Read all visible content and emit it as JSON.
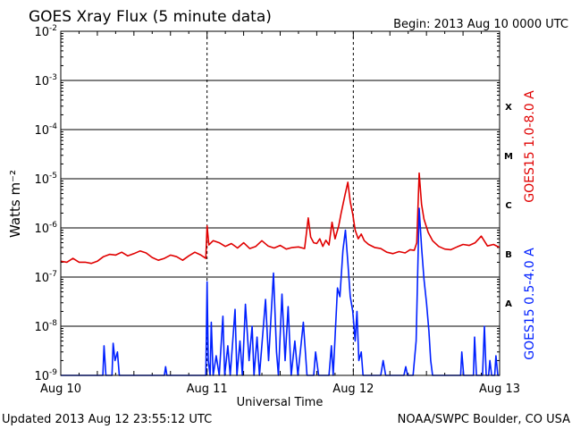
{
  "header": {
    "title": "GOES Xray Flux (5 minute data)",
    "begin": "Begin:  2013 Aug 10 0000 UTC"
  },
  "footer": {
    "updated": "Updated 2013 Aug 12 23:55:12 UTC",
    "credit": "NOAA/SWPC Boulder, CO USA"
  },
  "chart_data": {
    "type": "line",
    "title": "GOES Xray Flux (5 minute data)",
    "xlabel": "Universal Time",
    "ylabel": "Watts m⁻²",
    "y_scale": "log",
    "ylim": [
      1e-09,
      0.01
    ],
    "xlim": [
      0,
      72
    ],
    "x_unit": "hours since 2013 Aug 10 0000 UTC",
    "x_ticks": [
      {
        "x": 0,
        "label": "Aug 10"
      },
      {
        "x": 24,
        "label": "Aug 11"
      },
      {
        "x": 48,
        "label": "Aug 12"
      },
      {
        "x": 72,
        "label": "Aug 13"
      }
    ],
    "y_ticks": [
      {
        "exp": -9,
        "base": "10",
        "sup": "-9"
      },
      {
        "exp": -8,
        "base": "10",
        "sup": "-8"
      },
      {
        "exp": -7,
        "base": "10",
        "sup": "-7"
      },
      {
        "exp": -6,
        "base": "10",
        "sup": "-6"
      },
      {
        "exp": -5,
        "base": "10",
        "sup": "-5"
      },
      {
        "exp": -4,
        "base": "10",
        "sup": "-4"
      },
      {
        "exp": -3,
        "base": "10",
        "sup": "-3"
      },
      {
        "exp": -2,
        "base": "10",
        "sup": "-2"
      }
    ],
    "flare_classes": [
      {
        "label": "A",
        "y": 3e-08
      },
      {
        "label": "B",
        "y": 3e-07
      },
      {
        "label": "C",
        "y": 3e-06
      },
      {
        "label": "M",
        "y": 3e-05
      },
      {
        "label": "X",
        "y": 0.0003
      }
    ],
    "grid": true,
    "series": [
      {
        "name": "GOES15 1.0-8.0 A",
        "color": "#e00000",
        "points": [
          [
            0,
            2.1e-07
          ],
          [
            1,
            2e-07
          ],
          [
            2,
            2.4e-07
          ],
          [
            3,
            2e-07
          ],
          [
            4,
            2e-07
          ],
          [
            5,
            1.9e-07
          ],
          [
            6,
            2.1e-07
          ],
          [
            7,
            2.6e-07
          ],
          [
            8,
            2.9e-07
          ],
          [
            9,
            2.8e-07
          ],
          [
            10,
            3.2e-07
          ],
          [
            11,
            2.7e-07
          ],
          [
            12,
            3e-07
          ],
          [
            13,
            3.4e-07
          ],
          [
            14,
            3.1e-07
          ],
          [
            15,
            2.5e-07
          ],
          [
            16,
            2.2e-07
          ],
          [
            17,
            2.4e-07
          ],
          [
            18,
            2.8e-07
          ],
          [
            19,
            2.6e-07
          ],
          [
            20,
            2.2e-07
          ],
          [
            21,
            2.7e-07
          ],
          [
            22,
            3.2e-07
          ],
          [
            23,
            2.8e-07
          ],
          [
            23.8,
            2.4e-07
          ],
          [
            24,
            1.1e-06
          ],
          [
            24.3,
            4.5e-07
          ],
          [
            25,
            5.5e-07
          ],
          [
            26,
            5e-07
          ],
          [
            27,
            4.2e-07
          ],
          [
            28,
            4.8e-07
          ],
          [
            29,
            3.9e-07
          ],
          [
            30,
            5e-07
          ],
          [
            31,
            3.8e-07
          ],
          [
            32,
            4.2e-07
          ],
          [
            33,
            5.5e-07
          ],
          [
            34,
            4.3e-07
          ],
          [
            35,
            3.9e-07
          ],
          [
            36,
            4.4e-07
          ],
          [
            37,
            3.7e-07
          ],
          [
            38,
            4e-07
          ],
          [
            39,
            4.1e-07
          ],
          [
            40,
            3.8e-07
          ],
          [
            40.6,
            1.6e-06
          ],
          [
            41,
            6.5e-07
          ],
          [
            41.5,
            5e-07
          ],
          [
            42,
            4.8e-07
          ],
          [
            42.5,
            6e-07
          ],
          [
            43,
            4.2e-07
          ],
          [
            43.5,
            5.6e-07
          ],
          [
            44,
            4.5e-07
          ],
          [
            44.5,
            1.3e-06
          ],
          [
            45,
            6e-07
          ],
          [
            45.6,
            1.1e-06
          ],
          [
            46,
            2e-06
          ],
          [
            46.6,
            4.5e-06
          ],
          [
            47.1,
            8.5e-06
          ],
          [
            47.5,
            3.4e-06
          ],
          [
            47.9,
            1.9e-06
          ],
          [
            48.3,
            9e-07
          ],
          [
            48.8,
            6e-07
          ],
          [
            49.3,
            7.5e-07
          ],
          [
            49.8,
            5.5e-07
          ],
          [
            50.5,
            4.6e-07
          ],
          [
            51.5,
            4e-07
          ],
          [
            52.5,
            3.8e-07
          ],
          [
            53.5,
            3.2e-07
          ],
          [
            54.5,
            3e-07
          ],
          [
            55.5,
            3.3e-07
          ],
          [
            56.5,
            3.1e-07
          ],
          [
            57.3,
            3.6e-07
          ],
          [
            58.0,
            3.5e-07
          ],
          [
            58.4,
            5e-07
          ],
          [
            58.8,
            1.3e-05
          ],
          [
            59.2,
            3e-06
          ],
          [
            59.6,
            1.5e-06
          ],
          [
            60.3,
            8e-07
          ],
          [
            61,
            5.5e-07
          ],
          [
            62,
            4.2e-07
          ],
          [
            63,
            3.7e-07
          ],
          [
            64,
            3.6e-07
          ],
          [
            65,
            4.1e-07
          ],
          [
            66,
            4.6e-07
          ],
          [
            67,
            4.4e-07
          ],
          [
            68,
            5e-07
          ],
          [
            69,
            6.8e-07
          ],
          [
            70,
            4.3e-07
          ],
          [
            71,
            4.6e-07
          ],
          [
            72,
            4e-07
          ]
        ]
      },
      {
        "name": "GOES15 0.5-4.0 A",
        "color": "#0020ff",
        "points": [
          [
            0,
            1e-09
          ],
          [
            5,
            1e-09
          ],
          [
            6.9,
            1e-09
          ],
          [
            7.1,
            4e-09
          ],
          [
            7.4,
            1e-09
          ],
          [
            8.4,
            1e-09
          ],
          [
            8.6,
            4.5e-09
          ],
          [
            8.9,
            2e-09
          ],
          [
            9.3,
            3e-09
          ],
          [
            9.6,
            1e-09
          ],
          [
            17,
            1e-09
          ],
          [
            17.2,
            1.5e-09
          ],
          [
            17.4,
            1e-09
          ],
          [
            23.8,
            1e-09
          ],
          [
            24.0,
            8e-08
          ],
          [
            24.2,
            2e-09
          ],
          [
            24.5,
            1e-09
          ],
          [
            24.7,
            1.2e-08
          ],
          [
            25.0,
            1e-09
          ],
          [
            25.5,
            2.5e-09
          ],
          [
            26.0,
            1e-09
          ],
          [
            26.6,
            1.6e-08
          ],
          [
            26.9,
            1e-09
          ],
          [
            27.4,
            4e-09
          ],
          [
            27.8,
            1e-09
          ],
          [
            28.6,
            2.2e-08
          ],
          [
            28.9,
            1e-09
          ],
          [
            29.4,
            5e-09
          ],
          [
            29.8,
            1e-09
          ],
          [
            30.3,
            2.8e-08
          ],
          [
            30.9,
            2e-09
          ],
          [
            31.4,
            1e-08
          ],
          [
            31.7,
            1e-09
          ],
          [
            32.2,
            6e-09
          ],
          [
            32.6,
            1e-09
          ],
          [
            33.6,
            3.5e-08
          ],
          [
            34.1,
            2e-09
          ],
          [
            34.9,
            1.2e-07
          ],
          [
            35.4,
            3e-09
          ],
          [
            35.7,
            1e-09
          ],
          [
            36.3,
            4.5e-08
          ],
          [
            36.8,
            2e-09
          ],
          [
            37.3,
            2.5e-08
          ],
          [
            37.8,
            1e-09
          ],
          [
            38.4,
            5e-09
          ],
          [
            38.9,
            1e-09
          ],
          [
            39.8,
            1.2e-08
          ],
          [
            40.4,
            1e-09
          ],
          [
            41.5,
            1e-09
          ],
          [
            41.8,
            3e-09
          ],
          [
            42.3,
            1e-09
          ],
          [
            44.0,
            1e-09
          ],
          [
            44.4,
            4e-09
          ],
          [
            44.7,
            1e-09
          ],
          [
            45.4,
            6e-08
          ],
          [
            45.8,
            4e-08
          ],
          [
            46.3,
            3.5e-07
          ],
          [
            46.7,
            9e-07
          ],
          [
            47.1,
            2e-07
          ],
          [
            47.5,
            4e-08
          ],
          [
            47.9,
            2e-08
          ],
          [
            48.3,
            5e-09
          ],
          [
            48.6,
            2e-08
          ],
          [
            48.9,
            2e-09
          ],
          [
            49.3,
            3e-09
          ],
          [
            49.6,
            1e-09
          ],
          [
            52.5,
            1e-09
          ],
          [
            52.9,
            2e-09
          ],
          [
            53.3,
            1e-09
          ],
          [
            56.3,
            1e-09
          ],
          [
            56.6,
            1.5e-09
          ],
          [
            56.9,
            1e-09
          ],
          [
            57.8,
            1e-09
          ],
          [
            58.3,
            5e-09
          ],
          [
            58.8,
            2.5e-06
          ],
          [
            59.2,
            4e-07
          ],
          [
            59.6,
            9e-08
          ],
          [
            60.0,
            3e-08
          ],
          [
            60.4,
            8e-09
          ],
          [
            60.7,
            2e-09
          ],
          [
            61.0,
            1e-09
          ],
          [
            65.6,
            1e-09
          ],
          [
            65.8,
            3e-09
          ],
          [
            66.1,
            1e-09
          ],
          [
            67.7,
            1e-09
          ],
          [
            67.9,
            6e-09
          ],
          [
            68.2,
            1e-09
          ],
          [
            69.2,
            1e-09
          ],
          [
            69.5,
            1e-08
          ],
          [
            69.8,
            1e-09
          ],
          [
            70.2,
            1e-09
          ],
          [
            70.4,
            2e-09
          ],
          [
            70.7,
            1e-09
          ],
          [
            71.2,
            1e-09
          ],
          [
            71.4,
            2.5e-09
          ],
          [
            71.7,
            1e-09
          ],
          [
            72,
            1e-09
          ]
        ]
      }
    ]
  }
}
